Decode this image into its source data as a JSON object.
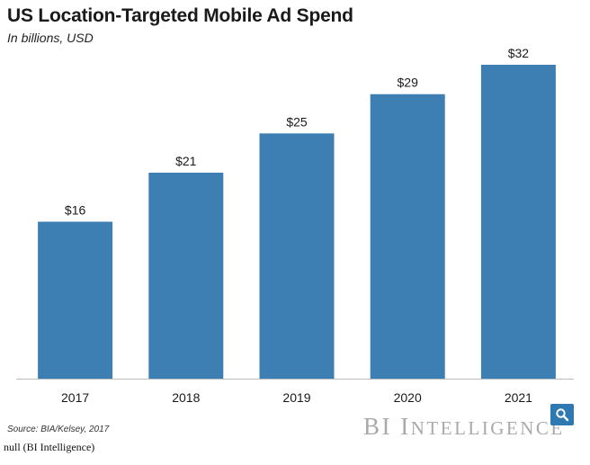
{
  "chart_data": {
    "type": "bar",
    "title": "US Location-Targeted Mobile Ad Spend",
    "subtitle": "In billions, USD",
    "categories": [
      "2017",
      "2018",
      "2019",
      "2020",
      "2021"
    ],
    "values": [
      16,
      21,
      25,
      29,
      32
    ],
    "value_labels": [
      "$16",
      "$21",
      "$25",
      "$29",
      "$32"
    ],
    "xlabel": "",
    "ylabel": "",
    "ylim": [
      0,
      32
    ],
    "grid": false,
    "bar_color": "#3d7fb2"
  },
  "footer": {
    "source": "Source: BIA/Kelsey, 2017",
    "brand_first": "BI",
    "brand_rest_initial": "I",
    "brand_rest": "NTELLIGENCE",
    "search_icon": "search-icon",
    "caption": "null (BI Intelligence)"
  }
}
